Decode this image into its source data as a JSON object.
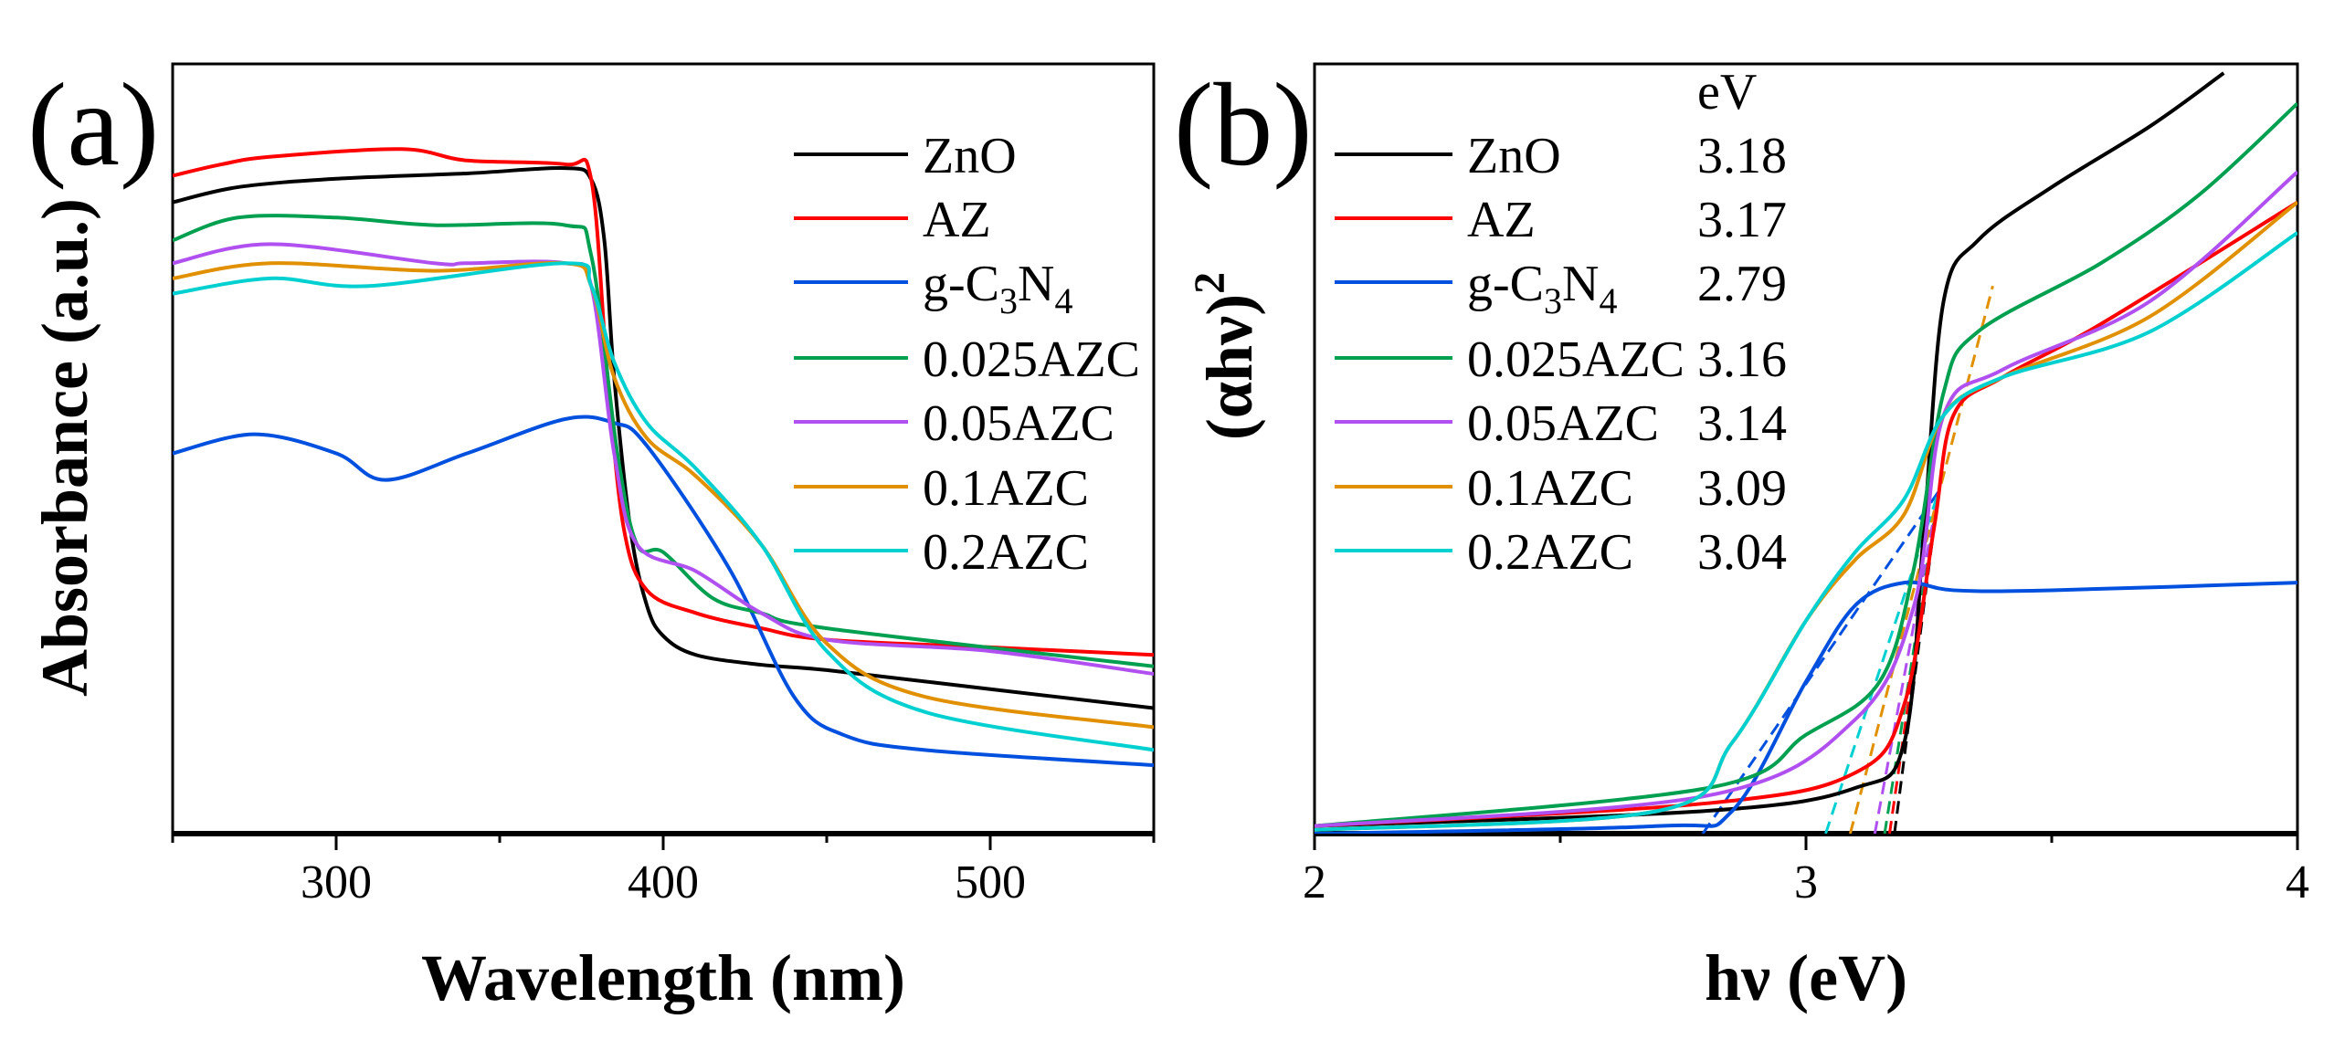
{
  "chart_data": [
    {
      "type": "line",
      "panel_label": "(a)",
      "xlabel": "Wavelength (nm)",
      "ylabel": "Absorbance (a.u.)",
      "xlim": [
        250,
        550
      ],
      "ylim": [
        0,
        1
      ],
      "xticks": [
        300,
        400,
        500
      ],
      "xminor": [
        250,
        350,
        450,
        550
      ],
      "legend_position": "right",
      "series": [
        {
          "name": "ZnO",
          "color": "#000000",
          "x": [
            250,
            270,
            300,
            340,
            370,
            378,
            382,
            385,
            390,
            395,
            400,
            410,
            430,
            450,
            500,
            550
          ],
          "y": [
            0.83,
            0.85,
            0.861,
            0.868,
            0.875,
            0.86,
            0.78,
            0.6,
            0.4,
            0.3,
            0.26,
            0.235,
            0.222,
            0.215,
            0.19,
            0.165
          ]
        },
        {
          "name": "AZ",
          "color": "#ff0000",
          "x": [
            250,
            265,
            280,
            320,
            340,
            370,
            378,
            383,
            388,
            395,
            410,
            430,
            450,
            500,
            550
          ],
          "y": [
            0.865,
            0.88,
            0.89,
            0.9,
            0.885,
            0.88,
            0.86,
            0.6,
            0.4,
            0.32,
            0.29,
            0.27,
            0.255,
            0.245,
            0.235
          ]
        },
        {
          "name": "g-C3N4",
          "color": "#0050e0",
          "x": [
            250,
            275,
            300,
            315,
            340,
            370,
            385,
            395,
            420,
            440,
            455,
            480,
            550
          ],
          "y": [
            0.5,
            0.525,
            0.5,
            0.465,
            0.5,
            0.545,
            0.54,
            0.51,
            0.35,
            0.18,
            0.13,
            0.11,
            0.09
          ]
        },
        {
          "name": "0.025AZC",
          "color": "#00a050",
          "x": [
            250,
            270,
            300,
            330,
            370,
            378,
            386,
            392,
            400,
            415,
            430,
            450,
            550
          ],
          "y": [
            0.78,
            0.81,
            0.81,
            0.8,
            0.8,
            0.76,
            0.5,
            0.38,
            0.37,
            0.31,
            0.29,
            0.27,
            0.22
          ]
        },
        {
          "name": "0.05AZC",
          "color": "#b050f0",
          "x": [
            250,
            280,
            330,
            340,
            370,
            378,
            385,
            392,
            410,
            430,
            450,
            500,
            550
          ],
          "y": [
            0.75,
            0.775,
            0.75,
            0.75,
            0.75,
            0.72,
            0.5,
            0.38,
            0.345,
            0.29,
            0.255,
            0.24,
            0.21
          ]
        },
        {
          "name": "0.1AZC",
          "color": "#e09000",
          "x": [
            250,
            280,
            330,
            370,
            378,
            385,
            395,
            410,
            430,
            450,
            480,
            550
          ],
          "y": [
            0.73,
            0.75,
            0.74,
            0.75,
            0.72,
            0.6,
            0.52,
            0.47,
            0.38,
            0.25,
            0.18,
            0.14
          ]
        },
        {
          "name": "0.2AZC",
          "color": "#00d0d0",
          "x": [
            250,
            280,
            310,
            370,
            378,
            385,
            395,
            410,
            430,
            450,
            480,
            550
          ],
          "y": [
            0.71,
            0.73,
            0.72,
            0.75,
            0.72,
            0.62,
            0.54,
            0.48,
            0.38,
            0.24,
            0.16,
            0.11
          ]
        }
      ]
    },
    {
      "type": "line",
      "panel_label": "(b)",
      "xlabel": "hν (eV)",
      "ylabel": "(αhν)",
      "ylabel_sup": "2",
      "xlim": [
        2,
        4
      ],
      "ylim": [
        0,
        1
      ],
      "xticks": [
        2,
        3,
        4
      ],
      "xminor": [
        2.5,
        3.5
      ],
      "legend_position": "top-left",
      "legend_value_header": "eV",
      "series": [
        {
          "name": "ZnO",
          "bandgap": "3.18",
          "color": "#000000",
          "x": [
            2,
            2.8,
            3.1,
            3.2,
            3.24,
            3.28,
            3.35,
            3.5,
            3.7,
            3.85
          ],
          "y": [
            0.01,
            0.03,
            0.06,
            0.12,
            0.4,
            0.7,
            0.78,
            0.85,
            0.93,
            1.0
          ]
        },
        {
          "name": "AZ",
          "bandgap": "3.17",
          "color": "#ff0000",
          "x": [
            2,
            2.8,
            3.1,
            3.2,
            3.26,
            3.3,
            3.4,
            3.6,
            4
          ],
          "y": [
            0.01,
            0.04,
            0.08,
            0.17,
            0.4,
            0.55,
            0.6,
            0.67,
            0.83
          ]
        },
        {
          "name": "g-C3N4",
          "bandgap": "2.79",
          "color": "#0050e0",
          "x": [
            2,
            2.7,
            2.85,
            3.0,
            3.1,
            3.2,
            3.3,
            3.5,
            4
          ],
          "y": [
            0.0,
            0.01,
            0.03,
            0.2,
            0.3,
            0.33,
            0.32,
            0.32,
            0.33
          ]
        },
        {
          "name": "0.025AZC",
          "bandgap": "3.16",
          "color": "#00a050",
          "x": [
            2,
            2.8,
            3.0,
            3.15,
            3.22,
            3.28,
            3.35,
            3.6,
            3.8,
            4
          ],
          "y": [
            0.01,
            0.06,
            0.13,
            0.2,
            0.35,
            0.58,
            0.66,
            0.75,
            0.84,
            0.96
          ]
        },
        {
          "name": "0.05AZC",
          "bandgap": "3.14",
          "color": "#b050f0",
          "x": [
            2,
            2.8,
            3.1,
            3.22,
            3.28,
            3.4,
            3.7,
            4
          ],
          "y": [
            0.01,
            0.05,
            0.15,
            0.3,
            0.55,
            0.61,
            0.7,
            0.87
          ]
        },
        {
          "name": "0.1AZC",
          "bandgap": "3.09",
          "color": "#e09000",
          "x": [
            2,
            2.7,
            2.85,
            3.0,
            3.1,
            3.2,
            3.28,
            3.4,
            3.7,
            4
          ],
          "y": [
            0.005,
            0.03,
            0.12,
            0.28,
            0.36,
            0.42,
            0.55,
            0.6,
            0.68,
            0.83
          ]
        },
        {
          "name": "0.2AZC",
          "bandgap": "3.04",
          "color": "#00d0d0",
          "x": [
            2,
            2.7,
            2.85,
            3.0,
            3.1,
            3.2,
            3.28,
            3.4,
            3.7,
            4
          ],
          "y": [
            0.005,
            0.03,
            0.12,
            0.28,
            0.37,
            0.44,
            0.55,
            0.6,
            0.66,
            0.79
          ]
        }
      ]
    }
  ]
}
